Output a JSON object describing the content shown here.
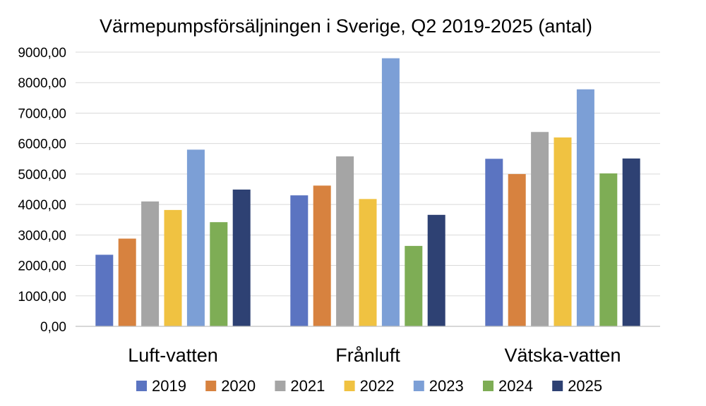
{
  "chart_data": {
    "type": "bar",
    "title": "Värmepumpsförsäljningen i Sverige, Q2 2019-2025 (antal)",
    "xlabel": "",
    "ylabel": "",
    "categories": [
      "Luft-vatten",
      "Frånluft",
      "Vätska-vatten"
    ],
    "ylim": [
      0,
      9000
    ],
    "yticks": [
      0,
      1000,
      2000,
      3000,
      4000,
      5000,
      6000,
      7000,
      8000,
      9000
    ],
    "ytick_labels": [
      "0,00",
      "1000,00",
      "2000,00",
      "3000,00",
      "4000,00",
      "5000,00",
      "6000,00",
      "7000,00",
      "8000,00",
      "9000,00"
    ],
    "grid": true,
    "legend_position": "bottom",
    "series": [
      {
        "name": "2019",
        "color": "#5b74c1",
        "values": [
          2350,
          4300,
          5500
        ]
      },
      {
        "name": "2020",
        "color": "#d7823f",
        "values": [
          2880,
          4620,
          5000
        ]
      },
      {
        "name": "2021",
        "color": "#a5a5a5",
        "values": [
          4100,
          5580,
          6380
        ]
      },
      {
        "name": "2022",
        "color": "#f0c241",
        "values": [
          3820,
          4180,
          6200
        ]
      },
      {
        "name": "2023",
        "color": "#7c9fd6",
        "values": [
          5800,
          8800,
          7780
        ]
      },
      {
        "name": "2024",
        "color": "#7ead55",
        "values": [
          3420,
          2640,
          5020
        ]
      },
      {
        "name": "2025",
        "color": "#2e4173",
        "values": [
          4490,
          3660,
          5510
        ]
      }
    ]
  }
}
